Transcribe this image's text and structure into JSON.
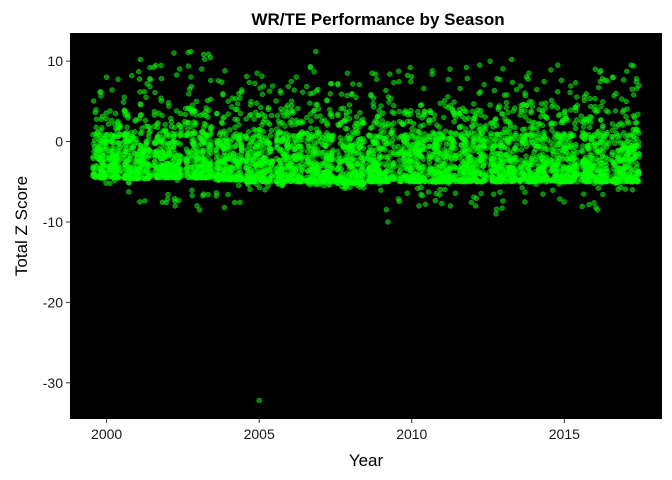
{
  "chart_data": {
    "type": "scatter",
    "title": "WR/TE Performance by Season",
    "xlabel": "Year",
    "ylabel": "Total Z Score",
    "xlim": [
      1998.8,
      2018.2
    ],
    "ylim": [
      -34.5,
      13.5
    ],
    "x_ticks": [
      2000,
      2005,
      2010,
      2015
    ],
    "y_ticks": [
      10,
      0,
      -10,
      -20,
      -30
    ],
    "grid": false,
    "background": "#000000",
    "point_color": "#00ff00",
    "point_opacity": 0.55,
    "jitter_width": 0.45,
    "seasons": [
      {
        "year": 2000,
        "count": 240,
        "bulk_low": -4.5,
        "bulk_high": 3.5,
        "min": -5.2,
        "max": 8.0
      },
      {
        "year": 2001,
        "count": 240,
        "bulk_low": -4.6,
        "bulk_high": 3.8,
        "min": -7.5,
        "max": 10.2
      },
      {
        "year": 2002,
        "count": 240,
        "bulk_low": -4.5,
        "bulk_high": 3.8,
        "min": -8.0,
        "max": 11.0
      },
      {
        "year": 2003,
        "count": 240,
        "bulk_low": -4.5,
        "bulk_high": 3.8,
        "min": -8.5,
        "max": 11.2
      },
      {
        "year": 2004,
        "count": 240,
        "bulk_low": -4.8,
        "bulk_high": 3.5,
        "min": -8.2,
        "max": 8.8
      },
      {
        "year": 2005,
        "count": 240,
        "bulk_low": -5.0,
        "bulk_high": 3.2,
        "min": -6.0,
        "max": 8.5
      },
      {
        "year": 2006,
        "count": 240,
        "bulk_low": -5.0,
        "bulk_high": 3.5,
        "min": -5.5,
        "max": 8.0
      },
      {
        "year": 2007,
        "count": 240,
        "bulk_low": -5.0,
        "bulk_high": 4.0,
        "min": -5.5,
        "max": 11.2
      },
      {
        "year": 2008,
        "count": 240,
        "bulk_low": -5.2,
        "bulk_high": 3.0,
        "min": -5.8,
        "max": 8.5
      },
      {
        "year": 2009,
        "count": 240,
        "bulk_low": -5.0,
        "bulk_high": 3.5,
        "min": -10.0,
        "max": 8.5
      },
      {
        "year": 2010,
        "count": 240,
        "bulk_low": -5.0,
        "bulk_high": 3.8,
        "min": -8.0,
        "max": 9.2
      },
      {
        "year": 2011,
        "count": 240,
        "bulk_low": -5.0,
        "bulk_high": 3.8,
        "min": -8.0,
        "max": 9.0
      },
      {
        "year": 2012,
        "count": 240,
        "bulk_low": -5.0,
        "bulk_high": 3.8,
        "min": -8.0,
        "max": 9.5
      },
      {
        "year": 2013,
        "count": 240,
        "bulk_low": -5.0,
        "bulk_high": 4.0,
        "min": -9.0,
        "max": 10.2
      },
      {
        "year": 2014,
        "count": 240,
        "bulk_low": -5.0,
        "bulk_high": 3.8,
        "min": -7.5,
        "max": 8.5
      },
      {
        "year": 2015,
        "count": 240,
        "bulk_low": -5.0,
        "bulk_high": 3.8,
        "min": -7.5,
        "max": 9.5
      },
      {
        "year": 2016,
        "count": 240,
        "bulk_low": -5.0,
        "bulk_high": 3.8,
        "min": -8.5,
        "max": 9.0
      },
      {
        "year": 2017,
        "count": 240,
        "bulk_low": -5.0,
        "bulk_high": 3.8,
        "min": -6.0,
        "max": 9.5
      }
    ],
    "outliers": [
      {
        "x": 2005.0,
        "y": -32.2
      }
    ]
  }
}
